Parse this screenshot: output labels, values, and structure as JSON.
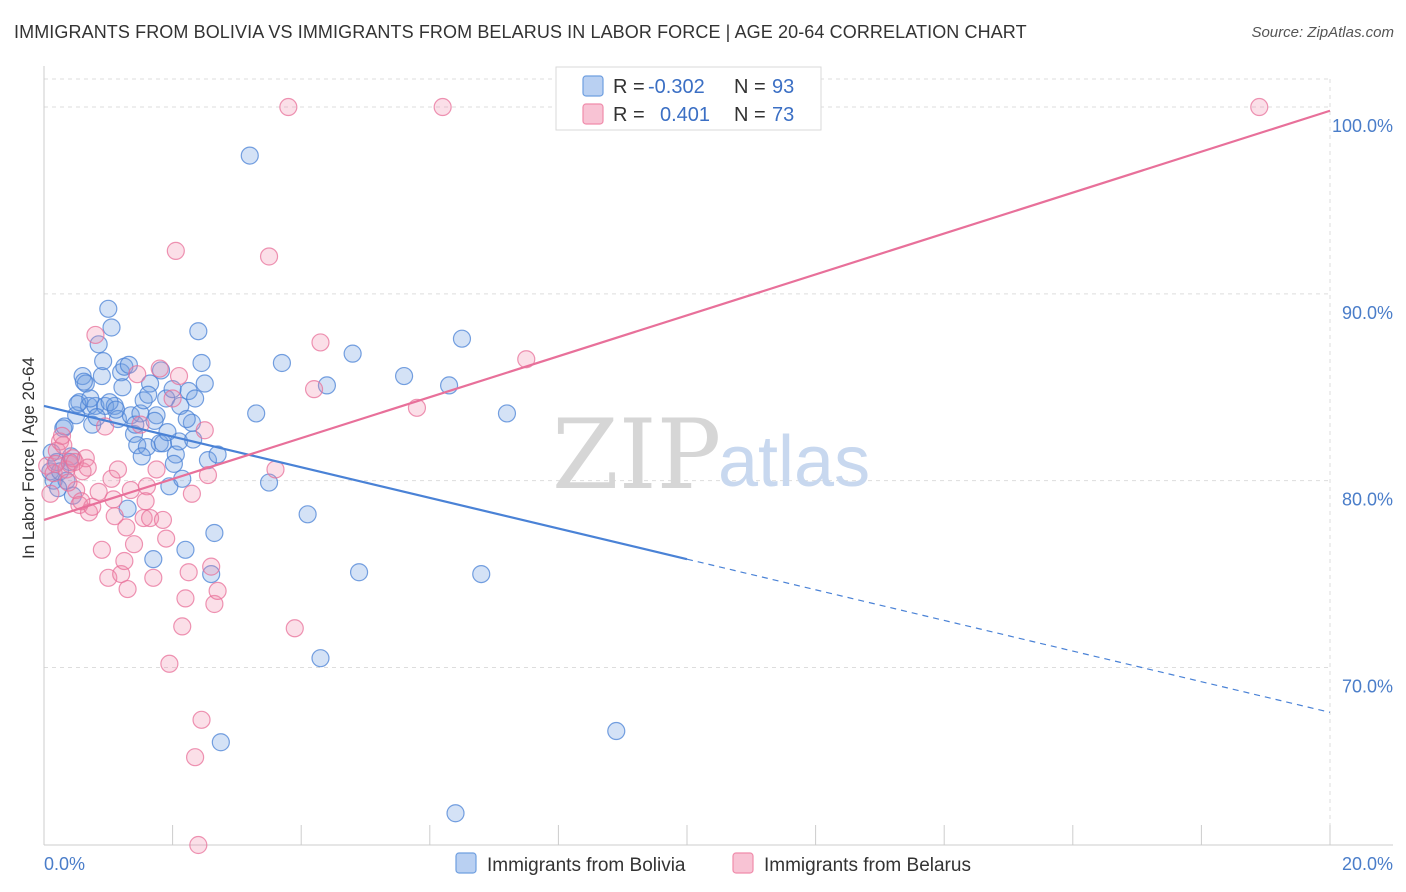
{
  "title": "IMMIGRANTS FROM BOLIVIA VS IMMIGRANTS FROM BELARUS IN LABOR FORCE | AGE 20-64 CORRELATION CHART",
  "source": "Source: ZipAtlas.com",
  "watermark": {
    "zip": "ZIP",
    "atlas": "atlas"
  },
  "legend": {
    "r_label": "R =",
    "n_label": "N =",
    "rows": [
      {
        "r": "-0.302",
        "n": "93",
        "color": "#6f9fe0"
      },
      {
        "r": "0.401",
        "n": "73",
        "color": "#f08cab"
      }
    ]
  },
  "colors": {
    "bolivia": "#4a82d6",
    "belarus": "#e8709a",
    "tick": "#4a7dc9",
    "grid": "#dddddd"
  },
  "chart_data": {
    "type": "scatter",
    "xlabel": "",
    "ylabel": "In Labor Force | Age 20-64",
    "xlim": [
      0,
      20
    ],
    "ylim": [
      60.5,
      101.5
    ],
    "x_ticks": [
      "0.0%",
      "20.0%"
    ],
    "y_ticks": [
      {
        "v": 100,
        "label": "100.0%"
      },
      {
        "v": 90,
        "label": "90.0%"
      },
      {
        "v": 80,
        "label": "80.0%"
      },
      {
        "v": 70,
        "label": "70.0%"
      }
    ],
    "grid": true,
    "series": [
      {
        "name": "Immigrants from Bolivia",
        "color": "#4a82d6",
        "trend": {
          "x0": 0,
          "y0": 84.0,
          "x1": 10,
          "y1": 75.8,
          "dash_to": 20,
          "dash_y": 67.6
        },
        "points": [
          [
            0.1,
            80.5
          ],
          [
            0.15,
            80
          ],
          [
            0.2,
            81
          ],
          [
            0.25,
            80.5
          ],
          [
            0.3,
            82.8
          ],
          [
            0.35,
            80
          ],
          [
            0.4,
            81
          ],
          [
            0.45,
            79.2
          ],
          [
            0.5,
            83.5
          ],
          [
            0.55,
            84.2
          ],
          [
            0.6,
            85.6
          ],
          [
            0.65,
            85.2
          ],
          [
            0.7,
            84
          ],
          [
            0.75,
            83
          ],
          [
            0.8,
            84
          ],
          [
            0.85,
            87.3
          ],
          [
            0.9,
            85.6
          ],
          [
            0.95,
            84
          ],
          [
            1.0,
            89.2
          ],
          [
            1.05,
            88.2
          ],
          [
            1.1,
            84
          ],
          [
            1.15,
            83.3
          ],
          [
            1.2,
            85.8
          ],
          [
            1.25,
            86.1
          ],
          [
            1.3,
            78.5
          ],
          [
            1.35,
            83.5
          ],
          [
            1.4,
            82.5
          ],
          [
            1.45,
            81.9
          ],
          [
            1.5,
            83.6
          ],
          [
            1.55,
            84.3
          ],
          [
            1.6,
            81.8
          ],
          [
            1.65,
            85.2
          ],
          [
            1.7,
            75.8
          ],
          [
            1.75,
            83.5
          ],
          [
            1.8,
            82
          ],
          [
            1.85,
            82
          ],
          [
            1.9,
            84.4
          ],
          [
            1.95,
            79.7
          ],
          [
            2.0,
            84.9
          ],
          [
            2.05,
            81.4
          ],
          [
            2.1,
            82.1
          ],
          [
            2.15,
            80.1
          ],
          [
            2.2,
            76.3
          ],
          [
            2.25,
            84.8
          ],
          [
            2.3,
            83.1
          ],
          [
            2.35,
            84.4
          ],
          [
            2.4,
            88
          ],
          [
            2.45,
            86.3
          ],
          [
            2.5,
            85.2
          ],
          [
            2.55,
            81.1
          ],
          [
            2.6,
            75
          ],
          [
            2.65,
            77.2
          ],
          [
            2.7,
            81.4
          ],
          [
            2.75,
            66
          ],
          [
            3.2,
            97.4
          ],
          [
            3.3,
            83.6
          ],
          [
            3.5,
            79.9
          ],
          [
            3.7,
            86.3
          ],
          [
            4.1,
            78.2
          ],
          [
            4.3,
            70.5
          ],
          [
            4.4,
            85.1
          ],
          [
            4.8,
            86.8
          ],
          [
            4.9,
            75.1
          ],
          [
            5.6,
            85.6
          ],
          [
            6.3,
            85.1
          ],
          [
            6.4,
            62.2
          ],
          [
            6.5,
            87.6
          ],
          [
            6.8,
            75
          ],
          [
            7.2,
            83.6
          ],
          [
            8.9,
            66.6
          ],
          [
            0.12,
            81.5
          ],
          [
            0.22,
            79.6
          ],
          [
            0.32,
            82.9
          ],
          [
            0.42,
            81.3
          ],
          [
            0.52,
            84.1
          ],
          [
            0.62,
            85.3
          ],
          [
            0.72,
            84.4
          ],
          [
            0.82,
            83.4
          ],
          [
            0.92,
            86.4
          ],
          [
            1.02,
            84.2
          ],
          [
            1.12,
            83.8
          ],
          [
            1.22,
            85.0
          ],
          [
            1.32,
            86.2
          ],
          [
            1.42,
            83.0
          ],
          [
            1.52,
            81.3
          ],
          [
            1.62,
            84.6
          ],
          [
            1.72,
            83.2
          ],
          [
            1.82,
            85.9
          ],
          [
            1.92,
            82.6
          ],
          [
            2.02,
            80.9
          ],
          [
            2.12,
            84.0
          ],
          [
            2.22,
            83.3
          ],
          [
            2.32,
            82.2
          ]
        ]
      },
      {
        "name": "Immigrants from Belarus",
        "color": "#e8709a",
        "trend": {
          "x0": 0,
          "y0": 77.9,
          "x1": 20,
          "y1": 99.8
        },
        "points": [
          [
            0.05,
            80.8
          ],
          [
            0.1,
            79.3
          ],
          [
            0.15,
            80.4
          ],
          [
            0.2,
            81.6
          ],
          [
            0.25,
            82.1
          ],
          [
            0.3,
            81.9
          ],
          [
            0.35,
            80.6
          ],
          [
            0.4,
            80.9
          ],
          [
            0.45,
            81.2
          ],
          [
            0.5,
            79.5
          ],
          [
            0.55,
            78.7
          ],
          [
            0.6,
            80.5
          ],
          [
            0.65,
            81.2
          ],
          [
            0.7,
            78.3
          ],
          [
            0.75,
            78.6
          ],
          [
            0.8,
            87.8
          ],
          [
            0.85,
            79.4
          ],
          [
            0.9,
            76.3
          ],
          [
            0.95,
            82.9
          ],
          [
            1.0,
            74.8
          ],
          [
            1.05,
            80.1
          ],
          [
            1.1,
            78.1
          ],
          [
            1.15,
            80.6
          ],
          [
            1.2,
            75
          ],
          [
            1.25,
            75.7
          ],
          [
            1.3,
            74.2
          ],
          [
            1.35,
            79.5
          ],
          [
            1.4,
            76.6
          ],
          [
            1.45,
            85.7
          ],
          [
            1.5,
            83
          ],
          [
            1.55,
            78
          ],
          [
            1.6,
            79.7
          ],
          [
            1.65,
            78
          ],
          [
            1.7,
            74.8
          ],
          [
            1.75,
            80.6
          ],
          [
            1.8,
            86
          ],
          [
            1.85,
            77.9
          ],
          [
            1.9,
            76.9
          ],
          [
            1.95,
            70.2
          ],
          [
            2.0,
            84.4
          ],
          [
            2.05,
            92.3
          ],
          [
            2.1,
            85.6
          ],
          [
            2.15,
            72.2
          ],
          [
            2.2,
            73.7
          ],
          [
            2.25,
            75.1
          ],
          [
            2.3,
            79.3
          ],
          [
            2.35,
            65.2
          ],
          [
            2.4,
            60.5
          ],
          [
            2.45,
            67.2
          ],
          [
            2.5,
            82.7
          ],
          [
            2.55,
            80.3
          ],
          [
            2.6,
            75.4
          ],
          [
            2.65,
            73.4
          ],
          [
            2.7,
            74.1
          ],
          [
            3.5,
            92
          ],
          [
            3.6,
            80.6
          ],
          [
            3.8,
            100
          ],
          [
            3.9,
            72.1
          ],
          [
            4.2,
            84.9
          ],
          [
            4.3,
            87.4
          ],
          [
            5.8,
            83.9
          ],
          [
            6.2,
            100
          ],
          [
            7.5,
            86.5
          ],
          [
            18.9,
            100
          ],
          [
            0.18,
            80.9
          ],
          [
            0.28,
            82.4
          ],
          [
            0.38,
            79.9
          ],
          [
            0.48,
            81.0
          ],
          [
            0.58,
            78.9
          ],
          [
            0.68,
            80.7
          ],
          [
            1.08,
            79.0
          ],
          [
            1.28,
            77.5
          ],
          [
            1.58,
            78.9
          ]
        ]
      }
    ]
  }
}
